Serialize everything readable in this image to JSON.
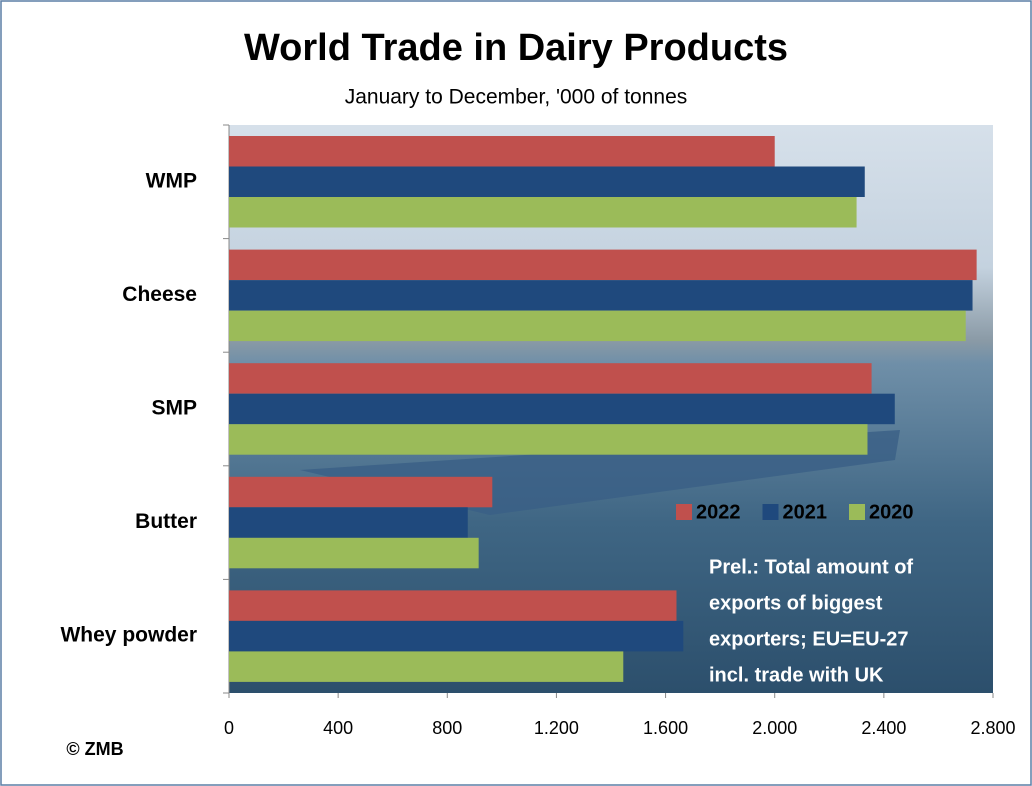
{
  "chart_data": {
    "type": "hbar",
    "title": "World Trade in Dairy Products",
    "subtitle": "January to December, '000 of tonnes",
    "categories": [
      "WMP",
      "Cheese",
      "SMP",
      "Butter",
      "Whey powder"
    ],
    "series": [
      {
        "name": "2022",
        "color": "#c0504d",
        "values": [
          2000,
          2740,
          2355,
          965,
          1640
        ]
      },
      {
        "name": "2021",
        "color": "#1f497d",
        "values": [
          2330,
          2725,
          2440,
          875,
          1665
        ]
      },
      {
        "name": "2020",
        "color": "#9bbb59",
        "values": [
          2300,
          2700,
          2340,
          915,
          1445
        ]
      }
    ],
    "xlim": [
      0,
      2800
    ],
    "xticks": [
      0,
      400,
      800,
      {
        "value": 1200,
        "label": "1.200"
      },
      {
        "value": 1600,
        "label": "1.600"
      },
      {
        "value": 2000,
        "label": "2.000"
      },
      {
        "value": 2400,
        "label": "2.400"
      },
      {
        "value": 2800,
        "label": "2.800"
      }
    ],
    "annotation": [
      "Prel.: Total amount of",
      "exports of biggest",
      "exporters; EU=EU-27",
      "incl. trade with UK"
    ],
    "copyright": "© ZMB"
  }
}
